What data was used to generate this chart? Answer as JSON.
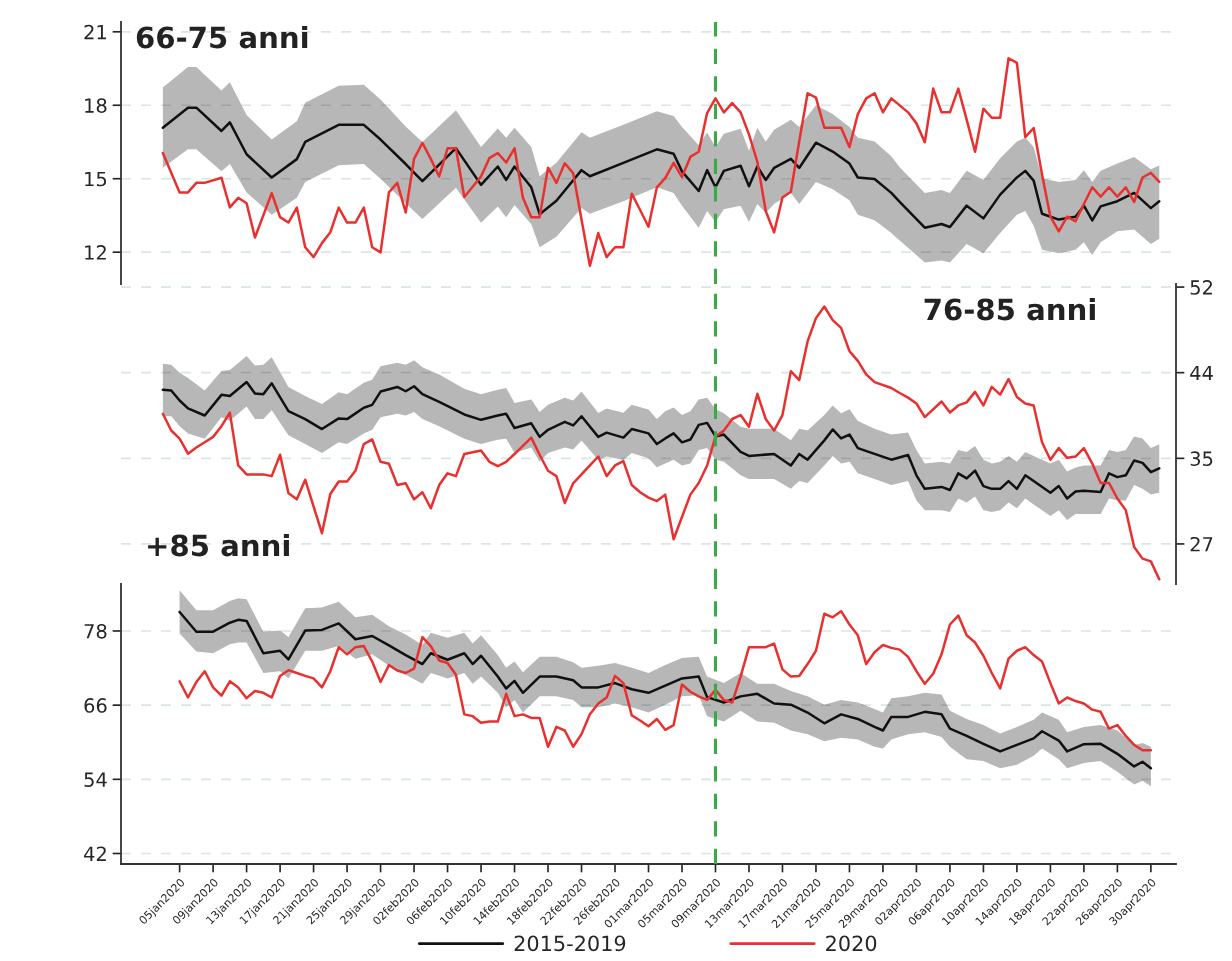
{
  "chart_data": [
    {
      "type": "line",
      "title": "66-75 anni",
      "xlim": [
        "2019-12-29",
        "2020-05-03"
      ],
      "ylim": [
        10.7,
        21.4
      ],
      "yticks": [
        12,
        15,
        18,
        21
      ],
      "tick_labels": "y",
      "grid": "y",
      "ref_lines": [
        {
          "axis": "x",
          "value": "2020-03-09",
          "color": "#3aaa48",
          "line_style": "dashed"
        }
      ],
      "series": [
        {
          "color": "#111111",
          "x": [
            "2020-01-03",
            "2020-01-06",
            "2020-01-07",
            "2020-01-10",
            "2020-01-11",
            "2020-01-13",
            "2020-01-16",
            "2020-01-19",
            "2020-01-20",
            "2020-01-24",
            "2020-01-27",
            "2020-01-29",
            "2020-02-01",
            "2020-02-03",
            "2020-02-07",
            "2020-02-10",
            "2020-02-12",
            "2020-02-13",
            "2020-02-14",
            "2020-02-16",
            "2020-02-17",
            "2020-02-19",
            "2020-02-22",
            "2020-02-23",
            "2020-02-27",
            "2020-03-02",
            "2020-03-04",
            "2020-03-05",
            "2020-03-07",
            "2020-03-08",
            "2020-03-09",
            "2020-03-10",
            "2020-03-12",
            "2020-03-13",
            "2020-03-14",
            "2020-03-15",
            "2020-03-16",
            "2020-03-18",
            "2020-03-19",
            "2020-03-21",
            "2020-03-23",
            "2020-03-25",
            "2020-03-26",
            "2020-03-28",
            "2020-03-30",
            "2020-03-31",
            "2020-04-03",
            "2020-04-05",
            "2020-04-06",
            "2020-04-08",
            "2020-04-10",
            "2020-04-12",
            "2020-04-14",
            "2020-04-15",
            "2020-04-16",
            "2020-04-17",
            "2020-04-19",
            "2020-04-21",
            "2020-04-22",
            "2020-04-23",
            "2020-04-24",
            "2020-04-26",
            "2020-04-28",
            "2020-04-30",
            "2020-05-01"
          ],
          "values": [
            17.08,
            17.9,
            17.9,
            16.95,
            17.3,
            16.0,
            15.05,
            15.8,
            16.5,
            17.2,
            17.2,
            16.6,
            15.6,
            14.9,
            16.25,
            14.75,
            15.5,
            14.95,
            15.5,
            14.65,
            13.55,
            14.1,
            15.35,
            15.1,
            15.65,
            16.2,
            16.02,
            15.3,
            14.5,
            15.35,
            14.65,
            15.32,
            15.53,
            14.69,
            15.5,
            14.95,
            15.44,
            15.81,
            15.44,
            16.47,
            16.11,
            15.62,
            15.05,
            14.99,
            14.42,
            14.05,
            13.0,
            13.15,
            13.03,
            13.9,
            13.38,
            14.35,
            15.05,
            15.32,
            14.92,
            13.57,
            13.33,
            13.45,
            13.9,
            13.3,
            13.87,
            14.08,
            14.42,
            13.8,
            14.08
          ],
          "upper": [
            18.72,
            19.56,
            19.56,
            18.6,
            18.94,
            17.6,
            16.6,
            17.35,
            18.1,
            18.8,
            18.84,
            18.23,
            17.13,
            16.5,
            17.8,
            16.3,
            17.05,
            16.67,
            17.08,
            16.3,
            15.1,
            15.65,
            16.9,
            16.67,
            17.2,
            17.75,
            17.56,
            17.11,
            16.37,
            16.89,
            16.29,
            16.84,
            17.04,
            16.14,
            17.08,
            16.52,
            17.0,
            17.41,
            17.11,
            18.0,
            17.64,
            17.11,
            16.67,
            16.52,
            15.92,
            15.47,
            14.42,
            14.54,
            14.42,
            15.32,
            14.95,
            15.84,
            16.52,
            16.67,
            16.29,
            15.02,
            14.87,
            14.95,
            15.35,
            14.87,
            15.32,
            15.62,
            15.89,
            15.39,
            15.54
          ],
          "lower": [
            15.45,
            16.2,
            16.2,
            15.3,
            15.6,
            14.44,
            13.53,
            14.22,
            14.87,
            15.55,
            15.6,
            15.0,
            14.0,
            13.35,
            14.63,
            13.2,
            13.86,
            13.43,
            13.93,
            13.14,
            12.2,
            12.63,
            13.8,
            13.57,
            14.08,
            14.65,
            14.42,
            13.9,
            13.0,
            13.68,
            13.23,
            13.75,
            13.9,
            13.23,
            13.97,
            13.6,
            13.97,
            14.42,
            13.97,
            14.87,
            14.57,
            14.12,
            13.53,
            13.3,
            12.78,
            12.48,
            11.58,
            11.66,
            11.58,
            12.33,
            11.96,
            12.78,
            13.53,
            13.68,
            13.08,
            12.1,
            11.96,
            12.1,
            12.4,
            11.88,
            12.4,
            12.85,
            12.93,
            12.33,
            12.55
          ]
        },
        {
          "color": "#e8312f",
          "x": [
            "2020-01-03",
            "2020-01-05",
            "2020-01-06",
            "2020-01-07",
            "2020-01-08",
            "2020-01-10",
            "2020-01-11",
            "2020-01-12",
            "2020-01-13",
            "2020-01-14",
            "2020-01-16",
            "2020-01-17",
            "2020-01-18",
            "2020-01-19",
            "2020-01-20",
            "2020-01-21",
            "2020-01-22",
            "2020-01-23",
            "2020-01-24",
            "2020-01-25",
            "2020-01-26",
            "2020-01-27",
            "2020-01-28",
            "2020-01-29",
            "2020-01-30",
            "2020-01-31",
            "2020-02-01",
            "2020-02-02",
            "2020-02-03",
            "2020-02-04",
            "2020-02-05",
            "2020-02-06",
            "2020-02-07",
            "2020-02-08",
            "2020-02-10",
            "2020-02-11",
            "2020-02-12",
            "2020-02-13",
            "2020-02-14",
            "2020-02-15",
            "2020-02-16",
            "2020-02-17",
            "2020-02-18",
            "2020-02-19",
            "2020-02-20",
            "2020-02-21",
            "2020-02-23",
            "2020-02-24",
            "2020-02-25",
            "2020-02-26",
            "2020-02-27",
            "2020-02-28",
            "2020-02-29",
            "2020-03-01",
            "2020-03-02",
            "2020-03-03",
            "2020-03-04",
            "2020-03-05",
            "2020-03-06",
            "2020-03-07",
            "2020-03-08",
            "2020-03-09",
            "2020-03-10",
            "2020-03-11",
            "2020-03-12",
            "2020-03-13",
            "2020-03-14",
            "2020-03-15",
            "2020-03-16",
            "2020-03-17",
            "2020-03-18",
            "2020-03-19",
            "2020-03-20",
            "2020-03-21",
            "2020-03-22",
            "2020-03-23",
            "2020-03-24",
            "2020-03-25",
            "2020-03-26",
            "2020-03-27",
            "2020-03-28",
            "2020-03-29",
            "2020-03-30",
            "2020-04-01",
            "2020-04-02",
            "2020-04-03",
            "2020-04-04",
            "2020-04-05",
            "2020-04-06",
            "2020-04-07",
            "2020-04-08",
            "2020-04-09",
            "2020-04-10",
            "2020-04-11",
            "2020-04-12",
            "2020-04-13",
            "2020-04-14",
            "2020-04-15",
            "2020-04-16",
            "2020-04-17",
            "2020-04-18",
            "2020-04-19",
            "2020-04-20",
            "2020-04-21",
            "2020-04-22",
            "2020-04-23",
            "2020-04-24",
            "2020-04-25",
            "2020-04-26",
            "2020-04-27",
            "2020-04-28",
            "2020-04-29",
            "2020-04-30",
            "2020-05-01"
          ],
          "values": [
            16.05,
            14.44,
            14.44,
            14.83,
            14.83,
            15.04,
            13.83,
            14.22,
            14.0,
            12.6,
            14.41,
            13.43,
            13.21,
            13.82,
            12.2,
            11.8,
            12.37,
            12.81,
            13.82,
            13.21,
            13.21,
            13.82,
            12.2,
            11.99,
            14.44,
            14.83,
            13.62,
            15.81,
            16.46,
            15.81,
            15.09,
            16.24,
            16.24,
            14.25,
            15.09,
            15.84,
            16.05,
            15.66,
            16.24,
            14.22,
            13.43,
            13.43,
            15.45,
            14.83,
            15.63,
            15.23,
            11.44,
            12.78,
            11.8,
            12.2,
            12.2,
            14.39,
            13.72,
            13.04,
            14.65,
            15.02,
            15.65,
            15.07,
            15.89,
            16.1,
            17.68,
            18.28,
            17.71,
            18.09,
            17.71,
            16.81,
            15.69,
            13.68,
            12.81,
            14.23,
            14.47,
            16.52,
            18.49,
            18.31,
            17.08,
            17.08,
            17.08,
            16.29,
            17.64,
            18.28,
            18.49,
            17.71,
            18.28,
            17.71,
            17.26,
            16.49,
            18.68,
            17.71,
            17.71,
            18.68,
            17.41,
            16.1,
            17.86,
            17.49,
            17.49,
            19.92,
            19.73,
            16.7,
            17.07,
            15.17,
            13.45,
            12.85,
            13.45,
            13.26,
            13.97,
            14.65,
            14.27,
            14.65,
            14.27,
            14.65,
            14.05,
            15.05,
            15.24,
            14.87
          ]
        }
      ]
    },
    {
      "type": "line",
      "title": "76-85 anni",
      "xlim": [
        "2019-12-29",
        "2020-05-03"
      ],
      "y2lim": [
        23.1,
        52.3
      ],
      "y2ticks": [
        {
          "value": 27,
          "label": "27"
        },
        {
          "value": 35.33,
          "label": "35"
        },
        {
          "value": 43.67,
          "label": "44"
        },
        {
          "value": 52,
          "label": "52"
        }
      ],
      "tick_labels": "y",
      "grid": "y",
      "ref_lines": [
        {
          "axis": "x",
          "value": "2020-03-09",
          "color": "#3aaa48",
          "line_style": "dashed"
        }
      ],
      "series": [
        {
          "color": "#111111",
          "axis": "y2",
          "x": [
            "2020-01-03",
            "2020-01-04",
            "2020-01-05",
            "2020-01-06",
            "2020-01-08",
            "2020-01-10",
            "2020-01-11",
            "2020-01-13",
            "2020-01-14",
            "2020-01-15",
            "2020-01-16",
            "2020-01-18",
            "2020-01-20",
            "2020-01-22",
            "2020-01-24",
            "2020-01-25",
            "2020-01-27",
            "2020-01-28",
            "2020-01-29",
            "2020-01-31",
            "2020-02-01",
            "2020-02-02",
            "2020-02-03",
            "2020-02-05",
            "2020-02-08",
            "2020-02-10",
            "2020-02-12",
            "2020-02-13",
            "2020-02-14",
            "2020-02-16",
            "2020-02-17",
            "2020-02-18",
            "2020-02-20",
            "2020-02-21",
            "2020-02-22",
            "2020-02-24",
            "2020-02-25",
            "2020-02-27",
            "2020-02-28",
            "2020-03-01",
            "2020-03-02",
            "2020-03-03",
            "2020-03-04",
            "2020-03-05",
            "2020-03-06",
            "2020-03-07",
            "2020-03-08",
            "2020-03-09",
            "2020-03-10",
            "2020-03-12",
            "2020-03-13",
            "2020-03-16",
            "2020-03-18",
            "2020-03-19",
            "2020-03-20",
            "2020-03-22",
            "2020-03-23",
            "2020-03-24",
            "2020-03-25",
            "2020-03-26",
            "2020-03-28",
            "2020-03-30",
            "2020-04-01",
            "2020-04-02",
            "2020-04-03",
            "2020-04-05",
            "2020-04-06",
            "2020-04-07",
            "2020-04-08",
            "2020-04-09",
            "2020-04-10",
            "2020-04-11",
            "2020-04-12",
            "2020-04-13",
            "2020-04-14",
            "2020-04-15",
            "2020-04-16",
            "2020-04-18",
            "2020-04-19",
            "2020-04-20",
            "2020-04-21",
            "2020-04-22",
            "2020-04-24",
            "2020-04-25",
            "2020-04-26",
            "2020-04-27",
            "2020-04-28",
            "2020-04-29",
            "2020-04-30",
            "2020-05-01"
          ],
          "values": [
            42.0,
            41.93,
            40.96,
            40.2,
            39.5,
            41.51,
            41.4,
            42.76,
            41.65,
            41.58,
            42.63,
            39.92,
            39.15,
            38.18,
            39.22,
            39.15,
            40.26,
            40.54,
            41.83,
            42.28,
            41.86,
            42.35,
            41.58,
            40.82,
            39.6,
            39.08,
            39.5,
            39.67,
            38.28,
            38.74,
            37.42,
            38.11,
            38.88,
            38.53,
            39.43,
            37.42,
            37.83,
            37.35,
            38.18,
            37.76,
            36.72,
            37.27,
            37.76,
            36.89,
            37.16,
            38.59,
            38.78,
            37.46,
            37.65,
            35.95,
            35.57,
            35.76,
            34.63,
            35.76,
            35.2,
            37.08,
            38.14,
            37.27,
            37.65,
            36.33,
            35.76,
            35.2,
            35.65,
            33.68,
            32.36,
            32.55,
            32.25,
            33.87,
            33.38,
            34.14,
            32.63,
            32.36,
            32.36,
            33.12,
            32.36,
            33.68,
            33.12,
            31.98,
            32.63,
            31.42,
            32.1,
            32.17,
            32.06,
            33.87,
            33.5,
            33.68,
            35.12,
            34.89,
            33.99,
            34.36
          ],
          "upper": [
            44.53,
            44.43,
            43.67,
            43.15,
            41.93,
            43.84,
            43.94,
            45.3,
            44.36,
            44.43,
            45.16,
            42.28,
            41.41,
            40.61,
            41.76,
            41.58,
            42.69,
            42.97,
            44.29,
            44.64,
            44.43,
            44.88,
            44.19,
            43.49,
            42.1,
            41.58,
            42.0,
            42.17,
            40.72,
            41.06,
            39.85,
            40.54,
            41.24,
            40.96,
            41.83,
            39.74,
            40.19,
            39.78,
            40.54,
            40.09,
            39.15,
            39.92,
            40.29,
            39.54,
            39.92,
            41.05,
            41.24,
            40.1,
            39.73,
            38.4,
            38.22,
            38.22,
            37.08,
            38.22,
            38.03,
            39.54,
            40.48,
            39.73,
            40.1,
            38.97,
            38.22,
            37.65,
            37.84,
            36.14,
            34.82,
            35.01,
            34.82,
            36.14,
            35.95,
            36.52,
            35.2,
            34.82,
            35.01,
            35.57,
            35.01,
            35.95,
            35.57,
            34.82,
            35.2,
            34.06,
            34.44,
            34.63,
            34.63,
            36.14,
            35.95,
            36.14,
            37.46,
            37.27,
            36.33,
            36.7
          ],
          "lower": [
            39.43,
            39.43,
            38.46,
            37.76,
            37.24,
            39.33,
            38.98,
            40.37,
            39.15,
            39.15,
            40.02,
            37.59,
            36.72,
            35.85,
            36.9,
            36.72,
            37.76,
            38.11,
            39.33,
            39.67,
            39.5,
            39.85,
            39.15,
            38.46,
            37.24,
            36.72,
            37.14,
            37.24,
            35.85,
            36.38,
            34.99,
            35.85,
            36.38,
            36.2,
            37.07,
            35.16,
            35.51,
            35.16,
            35.85,
            35.33,
            34.47,
            34.82,
            35.2,
            34.63,
            34.82,
            36.14,
            36.33,
            35.2,
            35.01,
            33.68,
            33.31,
            33.31,
            32.36,
            33.12,
            32.93,
            34.63,
            35.57,
            34.82,
            35.01,
            33.87,
            33.31,
            32.74,
            33.12,
            31.23,
            30.29,
            30.29,
            30.1,
            31.42,
            31.04,
            31.61,
            30.29,
            30.1,
            30.29,
            31.04,
            30.47,
            31.42,
            30.85,
            29.72,
            30.29,
            29.34,
            29.91,
            29.91,
            29.91,
            31.42,
            31.23,
            31.23,
            32.74,
            32.36,
            31.8,
            31.98
          ]
        },
        {
          "color": "#e8312f",
          "axis": "y2",
          "x": [
            "2020-01-03",
            "2020-01-04",
            "2020-01-05",
            "2020-01-06",
            "2020-01-07",
            "2020-01-08",
            "2020-01-09",
            "2020-01-10",
            "2020-01-11",
            "2020-01-12",
            "2020-01-13",
            "2020-01-14",
            "2020-01-15",
            "2020-01-16",
            "2020-01-17",
            "2020-01-18",
            "2020-01-19",
            "2020-01-20",
            "2020-01-22",
            "2020-01-23",
            "2020-01-24",
            "2020-01-25",
            "2020-01-26",
            "2020-01-27",
            "2020-01-28",
            "2020-01-29",
            "2020-01-30",
            "2020-01-31",
            "2020-02-01",
            "2020-02-02",
            "2020-02-03",
            "2020-02-04",
            "2020-02-05",
            "2020-02-06",
            "2020-02-07",
            "2020-02-08",
            "2020-02-10",
            "2020-02-11",
            "2020-02-12",
            "2020-02-13",
            "2020-02-14",
            "2020-02-15",
            "2020-02-16",
            "2020-02-17",
            "2020-02-18",
            "2020-02-19",
            "2020-02-20",
            "2020-02-21",
            "2020-02-23",
            "2020-02-24",
            "2020-02-25",
            "2020-02-26",
            "2020-02-27",
            "2020-02-28",
            "2020-02-29",
            "2020-03-01",
            "2020-03-02",
            "2020-03-03",
            "2020-03-04",
            "2020-03-06",
            "2020-03-07",
            "2020-03-08",
            "2020-03-09",
            "2020-03-10",
            "2020-03-11",
            "2020-03-12",
            "2020-03-13",
            "2020-03-14",
            "2020-03-15",
            "2020-03-16",
            "2020-03-17",
            "2020-03-18",
            "2020-03-19",
            "2020-03-20",
            "2020-03-21",
            "2020-03-22",
            "2020-03-23",
            "2020-03-24",
            "2020-03-25",
            "2020-03-26",
            "2020-03-27",
            "2020-03-28",
            "2020-03-30",
            "2020-03-31",
            "2020-04-01",
            "2020-04-02",
            "2020-04-03",
            "2020-04-05",
            "2020-04-06",
            "2020-04-07",
            "2020-04-08",
            "2020-04-09",
            "2020-04-10",
            "2020-04-11",
            "2020-04-12",
            "2020-04-13",
            "2020-04-14",
            "2020-04-15",
            "2020-04-16",
            "2020-04-17",
            "2020-04-18",
            "2020-04-19",
            "2020-04-20",
            "2020-04-21",
            "2020-04-22",
            "2020-04-23",
            "2020-04-24",
            "2020-04-25",
            "2020-04-26",
            "2020-04-27",
            "2020-04-28",
            "2020-04-29",
            "2020-04-30",
            "2020-05-01"
          ],
          "values": [
            39.67,
            38.04,
            37.24,
            35.78,
            36.38,
            36.9,
            37.42,
            38.46,
            39.78,
            34.64,
            33.77,
            33.77,
            33.77,
            33.6,
            35.68,
            31.93,
            31.34,
            33.25,
            28.04,
            31.86,
            33.08,
            33.08,
            34.12,
            36.72,
            37.17,
            34.99,
            34.81,
            32.73,
            32.9,
            31.34,
            32.03,
            30.47,
            32.73,
            33.87,
            33.6,
            35.75,
            36.1,
            34.99,
            34.57,
            34.99,
            35.75,
            36.55,
            37.35,
            35.68,
            34.12,
            33.6,
            30.99,
            32.9,
            34.64,
            35.51,
            33.6,
            34.64,
            35.06,
            32.73,
            32.03,
            31.51,
            31.17,
            31.8,
            27.45,
            31.8,
            32.93,
            34.63,
            37.46,
            38.03,
            39.16,
            39.54,
            38.4,
            41.61,
            39.16,
            38.03,
            39.54,
            43.81,
            42.94,
            46.71,
            48.98,
            50.11,
            48.79,
            48.03,
            45.77,
            44.82,
            43.5,
            42.75,
            42.18,
            41.69,
            41.24,
            40.67,
            39.35,
            40.86,
            39.8,
            40.48,
            40.78,
            41.8,
            40.48,
            42.29,
            41.54,
            43.05,
            41.31,
            40.67,
            40.48,
            36.89,
            35.2,
            36.33,
            35.38,
            35.5,
            36.33,
            34.82,
            32.93,
            32.93,
            31.42,
            30.29,
            26.7,
            25.57,
            25.3,
            23.56
          ]
        }
      ]
    },
    {
      "type": "line",
      "title": "+85 anni",
      "xlim": [
        "2019-12-29",
        "2020-05-03"
      ],
      "ylim": [
        40.3,
        85.6
      ],
      "yticks": [
        42,
        54,
        66,
        78
      ],
      "grid": "y",
      "legend": "bottom",
      "xticks": [
        {
          "value": "2020-01-05",
          "label": "05jan2020"
        },
        {
          "value": "2020-01-09",
          "label": "09jan2020"
        },
        {
          "value": "2020-01-13",
          "label": "13jan2020"
        },
        {
          "value": "2020-01-17",
          "label": "17jan2020"
        },
        {
          "value": "2020-01-21",
          "label": "21jan2020"
        },
        {
          "value": "2020-01-25",
          "label": "25jan2020"
        },
        {
          "value": "2020-01-29",
          "label": "29jan2020"
        },
        {
          "value": "2020-02-02",
          "label": "02feb2020"
        },
        {
          "value": "2020-02-06",
          "label": "06feb2020"
        },
        {
          "value": "2020-02-10",
          "label": "10feb2020"
        },
        {
          "value": "2020-02-14",
          "label": "14feb2020"
        },
        {
          "value": "2020-02-18",
          "label": "18feb2020"
        },
        {
          "value": "2020-02-22",
          "label": "22feb2020"
        },
        {
          "value": "2020-02-26",
          "label": "26feb2020"
        },
        {
          "value": "2020-03-01",
          "label": "01mar2020"
        },
        {
          "value": "2020-03-05",
          "label": "05mar2020"
        },
        {
          "value": "2020-03-09",
          "label": "09mar2020"
        },
        {
          "value": "2020-03-13",
          "label": "13mar2020"
        },
        {
          "value": "2020-03-17",
          "label": "17mar2020"
        },
        {
          "value": "2020-03-21",
          "label": "21mar2020"
        },
        {
          "value": "2020-03-25",
          "label": "25mar2020"
        },
        {
          "value": "2020-03-29",
          "label": "29mar2020"
        },
        {
          "value": "2020-04-02",
          "label": "02apr2020"
        },
        {
          "value": "2020-04-06",
          "label": "06apr2020"
        },
        {
          "value": "2020-04-10",
          "label": "10apr2020"
        },
        {
          "value": "2020-04-14",
          "label": "14apr2020"
        },
        {
          "value": "2020-04-18",
          "label": "18apr2020"
        },
        {
          "value": "2020-04-22",
          "label": "22apr2020"
        },
        {
          "value": "2020-04-26",
          "label": "26apr2020"
        },
        {
          "value": "2020-04-30",
          "label": "30apr2020"
        }
      ],
      "ref_lines": [
        {
          "axis": "x",
          "value": "2020-03-09",
          "color": "#3aaa48",
          "line_style": "dashed"
        }
      ],
      "series": [
        {
          "name": "2015-2019",
          "color": "#111111",
          "x": [
            "2020-01-05",
            "2020-01-07",
            "2020-01-09",
            "2020-01-11",
            "2020-01-12",
            "2020-01-13",
            "2020-01-15",
            "2020-01-17",
            "2020-01-18",
            "2020-01-20",
            "2020-01-22",
            "2020-01-24",
            "2020-01-26",
            "2020-01-28",
            "2020-01-30",
            "2020-02-01",
            "2020-02-03",
            "2020-02-04",
            "2020-02-06",
            "2020-02-08",
            "2020-02-09",
            "2020-02-10",
            "2020-02-12",
            "2020-02-13",
            "2020-02-14",
            "2020-02-15",
            "2020-02-17",
            "2020-02-19",
            "2020-02-21",
            "2020-02-22",
            "2020-02-24",
            "2020-02-26",
            "2020-02-28",
            "2020-03-01",
            "2020-03-03",
            "2020-03-05",
            "2020-03-07",
            "2020-03-08",
            "2020-03-10",
            "2020-03-12",
            "2020-03-14",
            "2020-03-16",
            "2020-03-18",
            "2020-03-20",
            "2020-03-22",
            "2020-03-24",
            "2020-03-26",
            "2020-03-28",
            "2020-03-29",
            "2020-03-30",
            "2020-04-01",
            "2020-04-03",
            "2020-04-05",
            "2020-04-06",
            "2020-04-08",
            "2020-04-10",
            "2020-04-12",
            "2020-04-14",
            "2020-04-16",
            "2020-04-17",
            "2020-04-19",
            "2020-04-20",
            "2020-04-22",
            "2020-04-24",
            "2020-04-26",
            "2020-04-28",
            "2020-04-29",
            "2020-04-30"
          ],
          "values": [
            81.08,
            77.88,
            77.88,
            79.34,
            79.8,
            79.63,
            74.4,
            74.8,
            73.41,
            78.06,
            78.17,
            79.22,
            76.66,
            77.19,
            75.67,
            74.1,
            72.65,
            74.4,
            73.35,
            74.4,
            72.65,
            73.99,
            70.62,
            68.7,
            69.92,
            68.0,
            70.62,
            70.62,
            70.03,
            68.87,
            68.87,
            69.57,
            68.58,
            68.0,
            69.16,
            70.33,
            70.62,
            67.3,
            66.43,
            67.42,
            67.83,
            66.26,
            66.08,
            64.8,
            63.06,
            64.51,
            63.76,
            62.48,
            61.9,
            64.1,
            64.1,
            64.92,
            64.51,
            62.19,
            61.02,
            59.74,
            58.52,
            59.57,
            60.62,
            61.78,
            60.27,
            58.52,
            59.69,
            59.74,
            58.12,
            56.08,
            56.84,
            55.79
          ],
          "upper": [
            84.57,
            81.37,
            81.37,
            82.83,
            83.29,
            83.12,
            77.88,
            78.06,
            77.01,
            81.66,
            81.78,
            82.71,
            80.21,
            80.62,
            78.76,
            77.42,
            75.73,
            77.71,
            76.9,
            77.71,
            75.97,
            77.3,
            74.1,
            72.07,
            73.06,
            71.31,
            73.81,
            73.81,
            72.94,
            72.07,
            72.36,
            72.83,
            72.07,
            71.2,
            72.48,
            73.64,
            73.81,
            70.62,
            69.57,
            71.2,
            69.45,
            69.45,
            68.29,
            67.42,
            66.08,
            66.84,
            66.43,
            65.38,
            64.8,
            67.13,
            67.42,
            68.0,
            67.71,
            65.09,
            63.76,
            62.77,
            61.43,
            62.48,
            63.64,
            64.8,
            63.64,
            61.6,
            62.48,
            62.77,
            61.9,
            59.57,
            59.86,
            59.28
          ],
          "lower": [
            77.59,
            74.69,
            74.4,
            75.85,
            76.14,
            76.14,
            71.2,
            71.49,
            70.33,
            74.8,
            74.8,
            75.56,
            73.52,
            74.22,
            72.36,
            70.91,
            69.45,
            71.2,
            70.33,
            71.2,
            69.45,
            70.62,
            68.0,
            65.67,
            66.84,
            64.8,
            67.42,
            67.42,
            66.84,
            65.67,
            65.67,
            66.26,
            65.67,
            64.8,
            66.08,
            67.42,
            67.59,
            64.22,
            63.35,
            65.09,
            63.35,
            63.17,
            61.9,
            61.31,
            60.15,
            60.73,
            60.44,
            59.28,
            58.99,
            60.44,
            61.31,
            61.6,
            60.85,
            59.28,
            57.24,
            56.95,
            55.79,
            56.37,
            57.83,
            58.99,
            57.24,
            55.79,
            56.66,
            56.95,
            55.21,
            53.17,
            53.76,
            52.88
          ]
        },
        {
          "name": "2020",
          "color": "#e8312f",
          "x": [
            "2020-01-05",
            "2020-01-06",
            "2020-01-07",
            "2020-01-08",
            "2020-01-09",
            "2020-01-10",
            "2020-01-11",
            "2020-01-12",
            "2020-01-13",
            "2020-01-14",
            "2020-01-15",
            "2020-01-16",
            "2020-01-17",
            "2020-01-18",
            "2020-01-19",
            "2020-01-20",
            "2020-01-21",
            "2020-01-22",
            "2020-01-23",
            "2020-01-24",
            "2020-01-25",
            "2020-01-26",
            "2020-01-27",
            "2020-01-28",
            "2020-01-29",
            "2020-01-30",
            "2020-01-31",
            "2020-02-01",
            "2020-02-02",
            "2020-02-03",
            "2020-02-04",
            "2020-02-05",
            "2020-02-06",
            "2020-02-07",
            "2020-02-08",
            "2020-02-09",
            "2020-02-10",
            "2020-02-11",
            "2020-02-12",
            "2020-02-13",
            "2020-02-14",
            "2020-02-15",
            "2020-02-16",
            "2020-02-17",
            "2020-02-18",
            "2020-02-19",
            "2020-02-20",
            "2020-02-21",
            "2020-02-22",
            "2020-02-23",
            "2020-02-24",
            "2020-02-25",
            "2020-02-26",
            "2020-02-27",
            "2020-02-28",
            "2020-02-29",
            "2020-03-01",
            "2020-03-02",
            "2020-03-03",
            "2020-03-04",
            "2020-03-05",
            "2020-03-06",
            "2020-03-07",
            "2020-03-08",
            "2020-03-09",
            "2020-03-10",
            "2020-03-11",
            "2020-03-12",
            "2020-03-13",
            "2020-03-14",
            "2020-03-15",
            "2020-03-16",
            "2020-03-17",
            "2020-03-18",
            "2020-03-19",
            "2020-03-20",
            "2020-03-21",
            "2020-03-22",
            "2020-03-23",
            "2020-03-24",
            "2020-03-25",
            "2020-03-26",
            "2020-03-27",
            "2020-03-28",
            "2020-03-29",
            "2020-03-30",
            "2020-03-31",
            "2020-04-01",
            "2020-04-02",
            "2020-04-03",
            "2020-04-04",
            "2020-04-05",
            "2020-04-06",
            "2020-04-07",
            "2020-04-08",
            "2020-04-09",
            "2020-04-10",
            "2020-04-11",
            "2020-04-12",
            "2020-04-13",
            "2020-04-14",
            "2020-04-15",
            "2020-04-16",
            "2020-04-17",
            "2020-04-18",
            "2020-04-19",
            "2020-04-20",
            "2020-04-21",
            "2020-04-22",
            "2020-04-23",
            "2020-04-24",
            "2020-04-25",
            "2020-04-26",
            "2020-04-27",
            "2020-04-28",
            "2020-04-29",
            "2020-04-30"
          ],
          "values": [
            69.86,
            67.24,
            69.74,
            71.49,
            68.87,
            67.53,
            69.86,
            68.87,
            67.13,
            68.29,
            68.0,
            67.24,
            70.73,
            71.66,
            71.2,
            70.73,
            70.33,
            68.87,
            71.49,
            75.38,
            74.22,
            75.38,
            75.56,
            73.06,
            69.74,
            72.48,
            71.6,
            71.2,
            71.9,
            77.01,
            75.56,
            73.23,
            72.83,
            70.91,
            64.51,
            64.22,
            63.17,
            63.35,
            63.35,
            67.83,
            64.22,
            64.51,
            63.93,
            63.93,
            59.28,
            62.48,
            61.9,
            59.28,
            61.31,
            64.51,
            66.26,
            67.24,
            70.73,
            69.57,
            64.34,
            63.52,
            62.59,
            63.76,
            62.01,
            62.77,
            69.34,
            68.17,
            67.42,
            66.84,
            68.47,
            66.84,
            66.43,
            70.62,
            75.38,
            75.38,
            75.38,
            75.97,
            71.78,
            70.62,
            70.73,
            72.65,
            74.8,
            80.79,
            80.21,
            81.2,
            79.05,
            77.3,
            72.65,
            74.57,
            75.73,
            75.27,
            74.98,
            73.81,
            71.49,
            69.45,
            71.08,
            74.22,
            79.05,
            80.5,
            77.3,
            76.14,
            73.99,
            71.2,
            68.7,
            73.52,
            74.8,
            75.38,
            74.1,
            73.06,
            69.57,
            66.26,
            67.24,
            66.66,
            66.26,
            65.27,
            64.92,
            62.19,
            62.77,
            61.02,
            59.57,
            58.7,
            58.7
          ]
        }
      ]
    }
  ]
}
